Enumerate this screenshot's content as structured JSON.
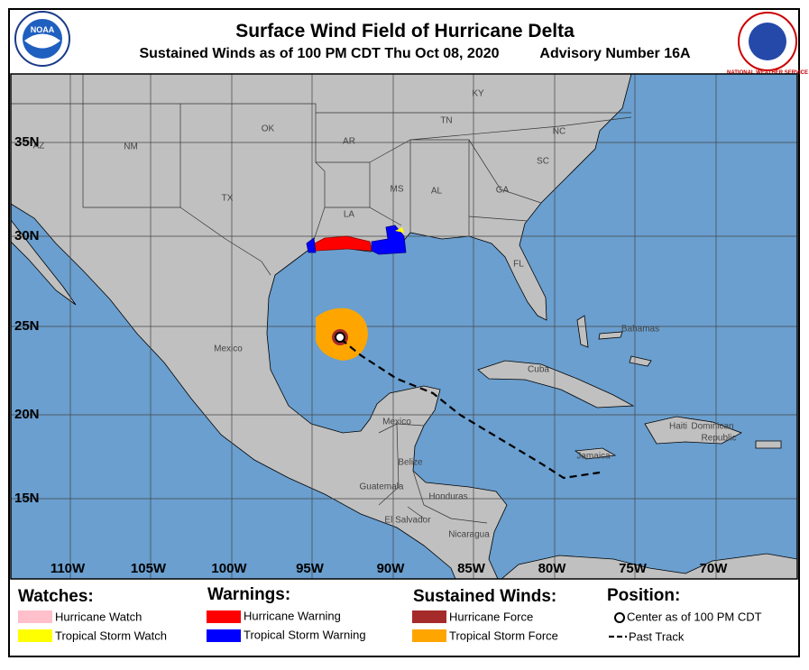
{
  "header": {
    "title": "Surface Wind Field of Hurricane Delta",
    "subtitle": "Sustained Winds as of 100 PM CDT Thu Oct 08, 2020",
    "advisory": "Advisory Number 16A"
  },
  "logos": {
    "noaa": "NOAA",
    "nws": "NATIONAL WEATHER SERVICE"
  },
  "map": {
    "lat_labels": [
      "35N",
      "30N",
      "25N",
      "20N",
      "15N"
    ],
    "lon_labels": [
      "110W",
      "105W",
      "100W",
      "95W",
      "90W",
      "85W",
      "80W",
      "75W",
      "70W"
    ],
    "place_labels": [
      "AZ",
      "NM",
      "OK",
      "AR",
      "KY",
      "TN",
      "NC",
      "SC",
      "TX",
      "LA",
      "MS",
      "AL",
      "GA",
      "FL",
      "Mexico",
      "Mexico",
      "Cuba",
      "Bahamas",
      "Haiti",
      "Dominican",
      "Republic",
      "Jamaica",
      "Belize",
      "Guatemala",
      "Honduras",
      "El Salvador",
      "Nicaragua"
    ]
  },
  "legend": {
    "watches": {
      "title": "Watches:",
      "items": [
        "Hurricane Watch",
        "Tropical Storm Watch"
      ]
    },
    "warnings": {
      "title": "Warnings:",
      "items": [
        "Hurricane Warning",
        "Tropical Storm Warning"
      ]
    },
    "winds": {
      "title": "Sustained Winds:",
      "items": [
        "Hurricane Force",
        "Tropical Storm Force"
      ]
    },
    "position": {
      "title": "Position:",
      "items": [
        "Center as of 100 PM CDT",
        "Past Track"
      ]
    }
  }
}
